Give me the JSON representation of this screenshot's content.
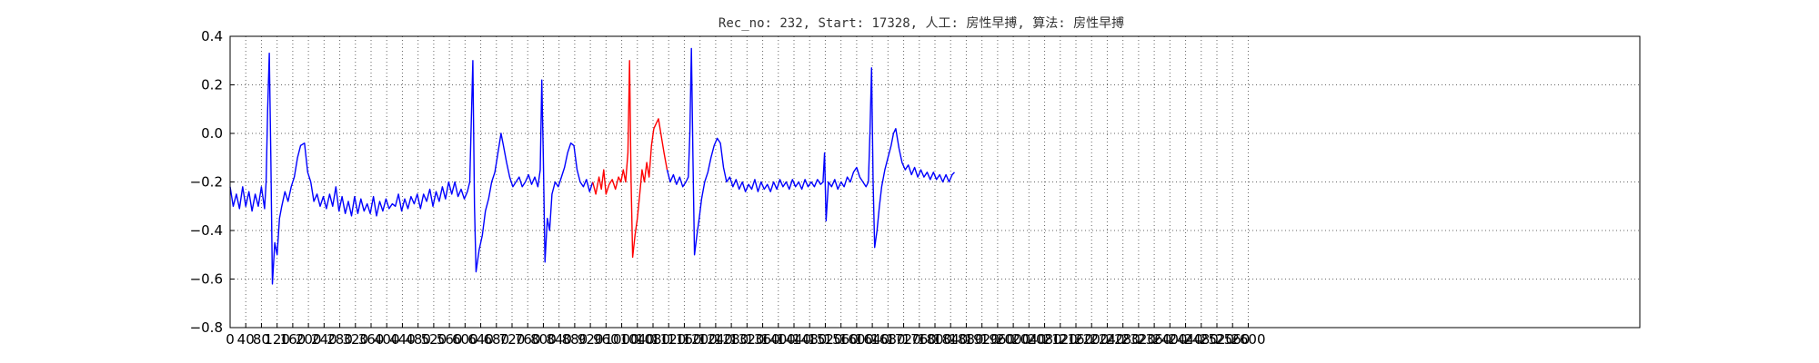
{
  "chart_data": {
    "type": "line",
    "title": "Rec_no: 232, Start: 17328, 人工: 房性早搏, 算法: 房性早搏",
    "xlabel": "",
    "ylabel": "",
    "xlim": [
      0,
      3600
    ],
    "ylim": [
      -0.8,
      0.4
    ],
    "grid": true,
    "y_ticks": [
      -0.8,
      -0.6,
      -0.4,
      -0.2,
      0.0,
      0.2,
      0.4
    ],
    "y_tick_labels": [
      "−0.8",
      "−0.6",
      "−0.4",
      "−0.2",
      "0.0",
      "0.2",
      "0.4"
    ],
    "x_ticks": [
      0,
      40,
      80,
      120,
      160,
      200,
      240,
      280,
      320,
      360,
      400,
      440,
      480,
      520,
      560,
      600,
      640,
      680,
      720,
      760,
      800,
      840,
      880,
      920,
      960,
      1000,
      1040,
      1080,
      1120,
      1160,
      1200,
      1240,
      1280,
      1320,
      1360,
      1400,
      1440,
      1480,
      1520,
      1560,
      1600,
      1640,
      1680,
      1720,
      1760,
      1800,
      1840,
      1880,
      1920,
      1960,
      2000,
      2040,
      2080,
      2120,
      2160,
      2200,
      2240,
      2280,
      2320,
      2360,
      2400,
      2440,
      2480,
      2520,
      2560,
      2600
    ],
    "x_tick_labels": [
      "0",
      "40",
      "80",
      "120",
      "160",
      "200",
      "240",
      "280",
      "320",
      "360",
      "400",
      "440",
      "480",
      "520",
      "560",
      "600",
      "640",
      "680",
      "720",
      "760",
      "800",
      "840",
      "880",
      "920",
      "960",
      "1000",
      "1040",
      "1080",
      "1120",
      "1160",
      "1200",
      "1240",
      "1280",
      "1320",
      "1360",
      "1400",
      "1440",
      "1480",
      "1520",
      "1560",
      "1600",
      "1640",
      "1680",
      "1720",
      "1760",
      "1800",
      "1840",
      "1880",
      "1920",
      "1960",
      "2000",
      "2040",
      "2080",
      "2120",
      "2160",
      "2200",
      "2240",
      "2280",
      "2320",
      "2360",
      "2400",
      "2440",
      "2480",
      "2520",
      "2560",
      "2600"
    ],
    "series": [
      {
        "color": "#0000ff",
        "points": [
          [
            0,
            -0.22
          ],
          [
            8,
            -0.3
          ],
          [
            16,
            -0.25
          ],
          [
            24,
            -0.31
          ],
          [
            32,
            -0.22
          ],
          [
            40,
            -0.3
          ],
          [
            48,
            -0.24
          ],
          [
            56,
            -0.32
          ],
          [
            64,
            -0.25
          ],
          [
            72,
            -0.3
          ],
          [
            80,
            -0.22
          ],
          [
            88,
            -0.31
          ],
          [
            92,
            -0.2
          ],
          [
            96,
            0.1
          ],
          [
            100,
            0.33
          ],
          [
            104,
            -0.1
          ],
          [
            108,
            -0.62
          ],
          [
            114,
            -0.45
          ],
          [
            120,
            -0.5
          ],
          [
            126,
            -0.35
          ],
          [
            132,
            -0.3
          ],
          [
            140,
            -0.24
          ],
          [
            148,
            -0.28
          ],
          [
            156,
            -0.22
          ],
          [
            164,
            -0.18
          ],
          [
            172,
            -0.1
          ],
          [
            180,
            -0.05
          ],
          [
            190,
            -0.04
          ],
          [
            198,
            -0.16
          ],
          [
            206,
            -0.2
          ],
          [
            214,
            -0.28
          ],
          [
            222,
            -0.25
          ],
          [
            230,
            -0.3
          ],
          [
            238,
            -0.26
          ],
          [
            246,
            -0.31
          ],
          [
            254,
            -0.25
          ],
          [
            262,
            -0.3
          ],
          [
            270,
            -0.22
          ],
          [
            278,
            -0.32
          ],
          [
            286,
            -0.26
          ],
          [
            294,
            -0.33
          ],
          [
            302,
            -0.28
          ],
          [
            310,
            -0.34
          ],
          [
            318,
            -0.26
          ],
          [
            326,
            -0.33
          ],
          [
            334,
            -0.27
          ],
          [
            342,
            -0.32
          ],
          [
            350,
            -0.29
          ],
          [
            358,
            -0.33
          ],
          [
            366,
            -0.26
          ],
          [
            374,
            -0.34
          ],
          [
            382,
            -0.28
          ],
          [
            390,
            -0.32
          ],
          [
            398,
            -0.27
          ],
          [
            406,
            -0.31
          ],
          [
            414,
            -0.29
          ],
          [
            422,
            -0.3
          ],
          [
            430,
            -0.25
          ],
          [
            438,
            -0.32
          ],
          [
            446,
            -0.27
          ],
          [
            454,
            -0.31
          ],
          [
            462,
            -0.26
          ],
          [
            470,
            -0.29
          ],
          [
            478,
            -0.25
          ],
          [
            486,
            -0.31
          ],
          [
            494,
            -0.25
          ],
          [
            502,
            -0.28
          ],
          [
            510,
            -0.23
          ],
          [
            518,
            -0.3
          ],
          [
            526,
            -0.24
          ],
          [
            534,
            -0.28
          ],
          [
            542,
            -0.22
          ],
          [
            550,
            -0.27
          ],
          [
            558,
            -0.2
          ],
          [
            566,
            -0.25
          ],
          [
            574,
            -0.2
          ],
          [
            582,
            -0.26
          ],
          [
            590,
            -0.23
          ],
          [
            598,
            -0.27
          ],
          [
            606,
            -0.24
          ],
          [
            612,
            -0.2
          ],
          [
            616,
            0.05
          ],
          [
            620,
            0.3
          ],
          [
            624,
            -0.3
          ],
          [
            628,
            -0.57
          ],
          [
            636,
            -0.48
          ],
          [
            644,
            -0.42
          ],
          [
            652,
            -0.32
          ],
          [
            660,
            -0.27
          ],
          [
            668,
            -0.2
          ],
          [
            676,
            -0.16
          ],
          [
            684,
            -0.08
          ],
          [
            692,
            0.0
          ],
          [
            698,
            -0.05
          ],
          [
            706,
            -0.12
          ],
          [
            714,
            -0.18
          ],
          [
            722,
            -0.22
          ],
          [
            730,
            -0.2
          ],
          [
            738,
            -0.18
          ],
          [
            746,
            -0.22
          ],
          [
            754,
            -0.2
          ],
          [
            762,
            -0.17
          ],
          [
            770,
            -0.21
          ],
          [
            778,
            -0.18
          ],
          [
            786,
            -0.22
          ],
          [
            792,
            -0.15
          ],
          [
            796,
            0.22
          ],
          [
            800,
            -0.1
          ],
          [
            804,
            -0.53
          ],
          [
            810,
            -0.35
          ],
          [
            816,
            -0.4
          ],
          [
            822,
            -0.25
          ],
          [
            830,
            -0.2
          ],
          [
            838,
            -0.22
          ],
          [
            846,
            -0.18
          ],
          [
            854,
            -0.14
          ],
          [
            862,
            -0.08
          ],
          [
            870,
            -0.04
          ],
          [
            878,
            -0.05
          ],
          [
            886,
            -0.15
          ],
          [
            894,
            -0.2
          ],
          [
            902,
            -0.22
          ],
          [
            910,
            -0.19
          ],
          [
            918,
            -0.24
          ],
          [
            926,
            -0.2
          ]
        ]
      },
      {
        "color": "#ff0000",
        "points": [
          [
            926,
            -0.2
          ],
          [
            934,
            -0.25
          ],
          [
            942,
            -0.18
          ],
          [
            948,
            -0.23
          ],
          [
            954,
            -0.15
          ],
          [
            960,
            -0.25
          ],
          [
            968,
            -0.21
          ],
          [
            976,
            -0.19
          ],
          [
            984,
            -0.23
          ],
          [
            992,
            -0.18
          ],
          [
            998,
            -0.2
          ],
          [
            1004,
            -0.15
          ],
          [
            1010,
            -0.2
          ],
          [
            1016,
            -0.08
          ],
          [
            1020,
            0.3
          ],
          [
            1024,
            -0.2
          ],
          [
            1028,
            -0.51
          ],
          [
            1034,
            -0.42
          ],
          [
            1040,
            -0.35
          ],
          [
            1046,
            -0.25
          ],
          [
            1052,
            -0.15
          ],
          [
            1058,
            -0.2
          ],
          [
            1064,
            -0.12
          ],
          [
            1070,
            -0.18
          ],
          [
            1076,
            -0.05
          ],
          [
            1082,
            0.02
          ],
          [
            1088,
            0.04
          ],
          [
            1094,
            0.06
          ],
          [
            1100,
            0.0
          ],
          [
            1108,
            -0.08
          ],
          [
            1116,
            -0.15
          ]
        ]
      },
      {
        "color": "#0000ff",
        "points": [
          [
            1116,
            -0.15
          ],
          [
            1124,
            -0.2
          ],
          [
            1132,
            -0.17
          ],
          [
            1140,
            -0.21
          ],
          [
            1148,
            -0.18
          ],
          [
            1156,
            -0.22
          ],
          [
            1164,
            -0.2
          ],
          [
            1170,
            -0.18
          ],
          [
            1174,
            0.0
          ],
          [
            1178,
            0.35
          ],
          [
            1182,
            -0.1
          ],
          [
            1186,
            -0.5
          ],
          [
            1192,
            -0.42
          ],
          [
            1198,
            -0.35
          ],
          [
            1204,
            -0.27
          ],
          [
            1212,
            -0.2
          ],
          [
            1220,
            -0.16
          ],
          [
            1228,
            -0.1
          ],
          [
            1236,
            -0.05
          ],
          [
            1244,
            -0.02
          ],
          [
            1252,
            -0.04
          ],
          [
            1260,
            -0.14
          ],
          [
            1268,
            -0.2
          ],
          [
            1276,
            -0.18
          ],
          [
            1284,
            -0.22
          ],
          [
            1292,
            -0.19
          ],
          [
            1300,
            -0.23
          ],
          [
            1308,
            -0.2
          ],
          [
            1316,
            -0.24
          ],
          [
            1324,
            -0.21
          ],
          [
            1332,
            -0.23
          ],
          [
            1340,
            -0.19
          ],
          [
            1348,
            -0.24
          ],
          [
            1356,
            -0.2
          ],
          [
            1364,
            -0.23
          ],
          [
            1372,
            -0.21
          ],
          [
            1380,
            -0.24
          ],
          [
            1388,
            -0.2
          ],
          [
            1396,
            -0.23
          ],
          [
            1404,
            -0.19
          ],
          [
            1412,
            -0.22
          ],
          [
            1420,
            -0.2
          ],
          [
            1428,
            -0.23
          ],
          [
            1436,
            -0.19
          ],
          [
            1444,
            -0.22
          ],
          [
            1452,
            -0.2
          ],
          [
            1460,
            -0.23
          ],
          [
            1468,
            -0.19
          ],
          [
            1476,
            -0.22
          ],
          [
            1484,
            -0.2
          ],
          [
            1492,
            -0.22
          ],
          [
            1500,
            -0.19
          ],
          [
            1508,
            -0.21
          ],
          [
            1514,
            -0.2
          ],
          [
            1518,
            -0.08
          ],
          [
            1522,
            -0.36
          ],
          [
            1528,
            -0.2
          ],
          [
            1536,
            -0.22
          ],
          [
            1544,
            -0.19
          ],
          [
            1552,
            -0.23
          ],
          [
            1560,
            -0.2
          ],
          [
            1568,
            -0.22
          ],
          [
            1576,
            -0.18
          ],
          [
            1584,
            -0.2
          ],
          [
            1592,
            -0.16
          ],
          [
            1600,
            -0.14
          ],
          [
            1608,
            -0.18
          ],
          [
            1616,
            -0.2
          ],
          [
            1624,
            -0.22
          ],
          [
            1630,
            -0.2
          ],
          [
            1634,
            0.0
          ],
          [
            1638,
            0.27
          ],
          [
            1642,
            -0.2
          ],
          [
            1646,
            -0.47
          ],
          [
            1652,
            -0.4
          ],
          [
            1658,
            -0.3
          ],
          [
            1664,
            -0.22
          ],
          [
            1672,
            -0.15
          ],
          [
            1680,
            -0.1
          ],
          [
            1688,
            -0.05
          ],
          [
            1694,
            0.0
          ],
          [
            1700,
            0.02
          ],
          [
            1708,
            -0.06
          ],
          [
            1716,
            -0.12
          ],
          [
            1724,
            -0.15
          ],
          [
            1732,
            -0.13
          ],
          [
            1740,
            -0.17
          ],
          [
            1748,
            -0.14
          ],
          [
            1756,
            -0.18
          ],
          [
            1764,
            -0.15
          ],
          [
            1772,
            -0.18
          ],
          [
            1780,
            -0.16
          ],
          [
            1788,
            -0.19
          ],
          [
            1796,
            -0.16
          ],
          [
            1804,
            -0.19
          ],
          [
            1812,
            -0.17
          ],
          [
            1820,
            -0.2
          ],
          [
            1828,
            -0.17
          ],
          [
            1836,
            -0.2
          ],
          [
            1844,
            -0.17
          ],
          [
            1850,
            -0.16
          ]
        ]
      }
    ]
  }
}
